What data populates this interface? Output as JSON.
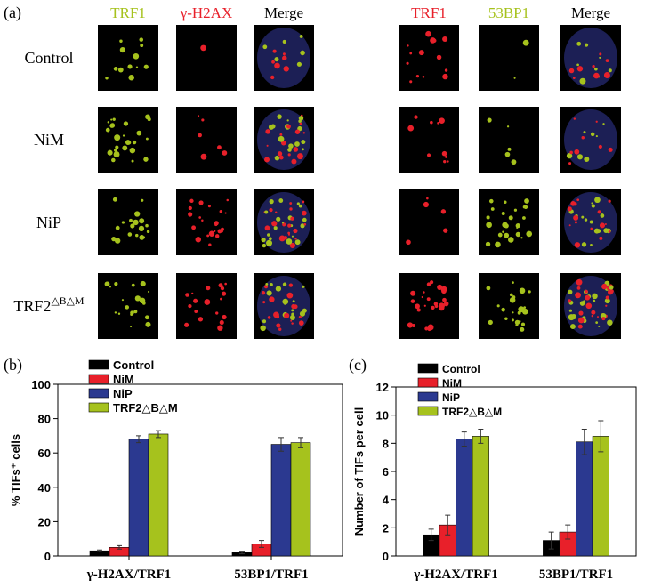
{
  "panel_a": {
    "label": "(a)",
    "left_headers": [
      "TRF1",
      "γ-H2AX",
      "Merge"
    ],
    "right_headers": [
      "TRF1",
      "53BP1",
      "Merge"
    ],
    "rows": [
      {
        "name": "Control"
      },
      {
        "name": "NiM"
      },
      {
        "name": "NiP"
      },
      {
        "name": "TRF2",
        "sup": "△B△M"
      }
    ]
  },
  "chart_data": [
    {
      "type": "bar",
      "panel_label": "(b)",
      "ylabel": "% TIFs⁺ cells",
      "categories": [
        "γ-H2AX/TRF1",
        "53BP1/TRF1"
      ],
      "series": [
        {
          "name": "Control",
          "color": "#000000",
          "values": [
            3,
            2
          ],
          "errors": [
            0.5,
            0.8
          ]
        },
        {
          "name": "NiM",
          "color": "#e8202a",
          "values": [
            5,
            7
          ],
          "errors": [
            1,
            2
          ]
        },
        {
          "name": "NiP",
          "color": "#2b3990",
          "values": [
            68,
            65
          ],
          "errors": [
            2,
            4
          ]
        },
        {
          "name": "TRF2△B△M",
          "color": "#a6c21d",
          "values": [
            71,
            66
          ],
          "errors": [
            2,
            3
          ]
        }
      ],
      "ylim": [
        0,
        100
      ],
      "yticks": [
        0,
        20,
        40,
        60,
        80,
        100
      ]
    },
    {
      "type": "bar",
      "panel_label": "(c)",
      "ylabel": "Number of TIFs per cell",
      "categories": [
        "γ-H2AX/TRF1",
        "53BP1/TRF1"
      ],
      "series": [
        {
          "name": "Control",
          "color": "#000000",
          "values": [
            1.5,
            1.1
          ],
          "errors": [
            0.4,
            0.6
          ]
        },
        {
          "name": "NiM",
          "color": "#e8202a",
          "values": [
            2.2,
            1.7
          ],
          "errors": [
            0.7,
            0.5
          ]
        },
        {
          "name": "NiP",
          "color": "#2b3990",
          "values": [
            8.3,
            8.1
          ],
          "errors": [
            0.5,
            0.9
          ]
        },
        {
          "name": "TRF2△B△M",
          "color": "#a6c21d",
          "values": [
            8.5,
            8.5
          ],
          "errors": [
            0.5,
            1.1
          ]
        }
      ],
      "ylim": [
        0,
        12
      ],
      "yticks": [
        0,
        2,
        4,
        6,
        8,
        10,
        12
      ]
    }
  ]
}
